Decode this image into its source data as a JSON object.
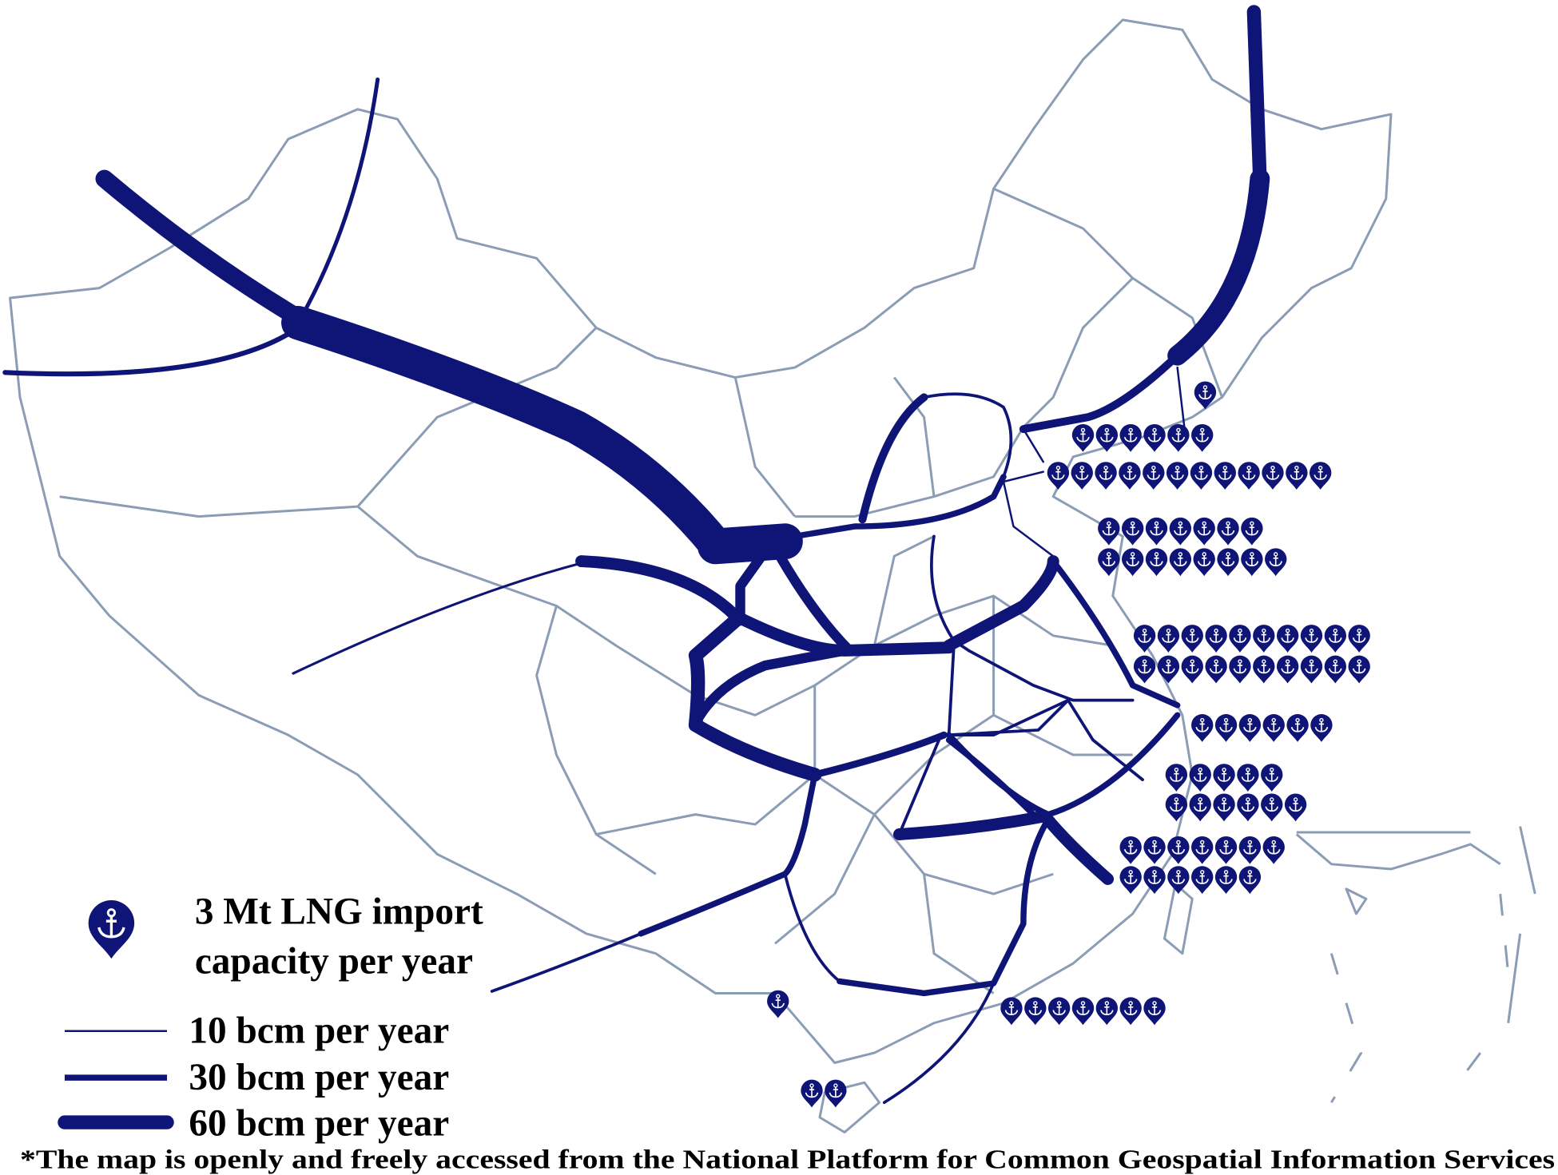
{
  "legend": {
    "lng_label": [
      "3 Mt LNG import",
      "capacity per year"
    ],
    "pipelines": [
      "10 bcm per year",
      "30 bcm per year",
      "60 bcm per year"
    ]
  },
  "footnote": "*The map is openly and freely accessed from the National Platform for Common Geospatial Information Services"
}
